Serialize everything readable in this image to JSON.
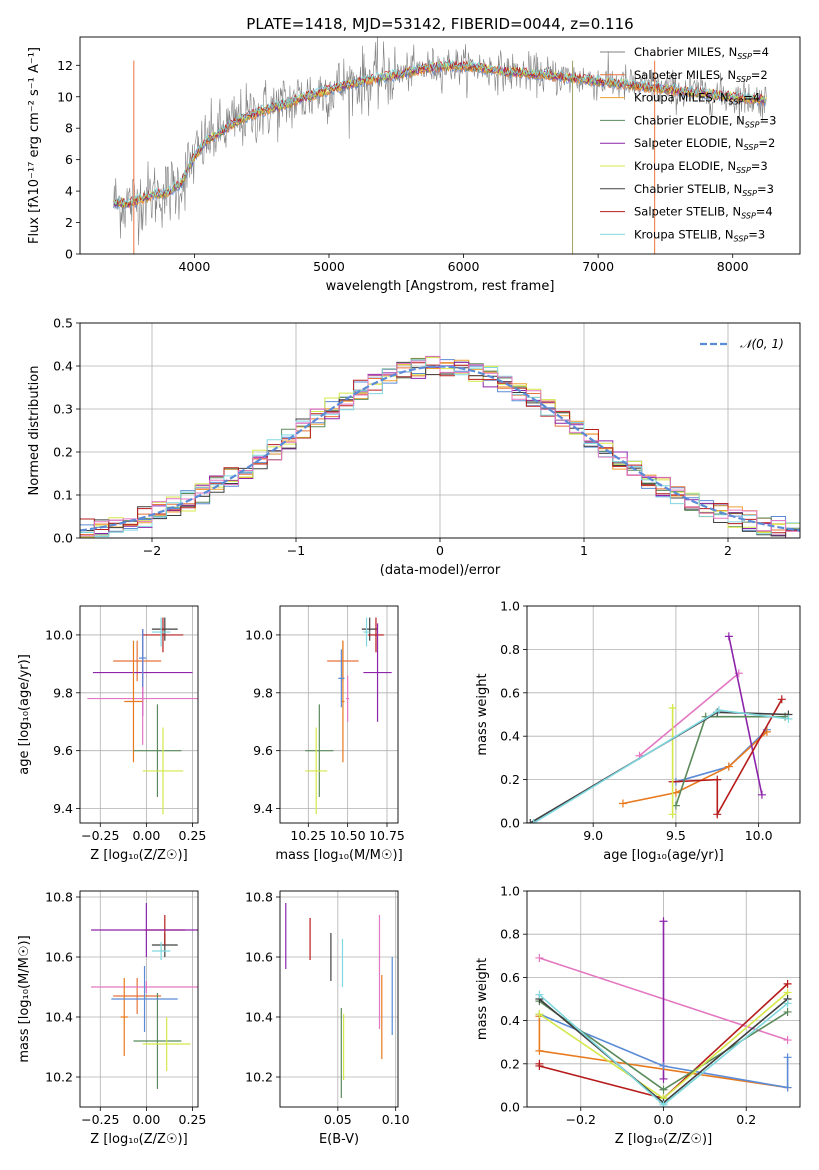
{
  "figure_title": "PLATE=1418, MJD=53142, FIBERID=0044, z=0.116",
  "colors": {
    "C_MILES": "#808080",
    "S_MILES": "#e8743b",
    "K_MILES": "#f0a030",
    "C_ELODIE": "#5a8a5a",
    "S_ELODIE": "#8e24aa",
    "K_ELODIE": "#d4e84a",
    "C_STELIB": "#404040",
    "S_STELIB": "#b71c1c",
    "K_STELIB": "#80d8e0",
    "pink": "#e377c2",
    "blue": "#5b8bd6",
    "orange": "#e87a1e",
    "gaussian": "#5b8bd6"
  },
  "chart_data": [
    {
      "id": "spectrum",
      "type": "line",
      "title": "PLATE=1418, MJD=53142, FIBERID=0044, z=0.116",
      "xlabel": "wavelength [Angstrom, rest frame]",
      "ylabel": "Flux [fλ10⁻¹⁷ erg cm⁻² s⁻¹ A⁻¹]",
      "xlim": [
        3150,
        8500
      ],
      "ylim": [
        0,
        13.8
      ],
      "xticks": [
        4000,
        5000,
        6000,
        7000,
        8000
      ],
      "yticks": [
        0,
        2,
        4,
        6,
        8,
        10,
        12
      ],
      "grid": false,
      "legend": "top-right",
      "continuum": {
        "x": [
          3400,
          3500,
          3600,
          3700,
          3800,
          3900,
          4000,
          4100,
          4200,
          4300,
          4500,
          4700,
          4900,
          5100,
          5300,
          5500,
          5700,
          5900,
          6100,
          6300,
          6500,
          6700,
          6900,
          7100,
          7300,
          7500,
          7700,
          7900,
          8100,
          8250
        ],
        "y": [
          3.3,
          3.2,
          3.5,
          3.8,
          3.9,
          4.5,
          6.2,
          7.3,
          7.8,
          8.4,
          9.1,
          9.6,
          10.2,
          10.7,
          11.1,
          11.4,
          11.8,
          12.0,
          11.9,
          11.6,
          11.5,
          11.3,
          11.1,
          10.9,
          10.7,
          10.5,
          10.3,
          10.1,
          9.9,
          9.8
        ]
      },
      "series": [
        {
          "name": "Chabrier MILES, N$_{SSP}$=4",
          "color": "#808080"
        },
        {
          "name": "Salpeter MILES, N$_{SSP}$=2",
          "color": "#e8743b"
        },
        {
          "name": "Kroupa MILES, N$_{SSP}$=4",
          "color": "#f0a030"
        },
        {
          "name": "Chabrier ELODIE, N$_{SSP}$=3",
          "color": "#5a8a5a"
        },
        {
          "name": "Salpeter ELODIE, N$_{SSP}$=2",
          "color": "#8e24aa"
        },
        {
          "name": "Kroupa ELODIE, N$_{SSP}$=3",
          "color": "#d4e84a"
        },
        {
          "name": "Chabrier STELIB, N$_{SSP}$=3",
          "color": "#404040"
        },
        {
          "name": "Salpeter STELIB, N$_{SSP}$=4",
          "color": "#b71c1c"
        },
        {
          "name": "Kroupa STELIB, N$_{SSP}$=3",
          "color": "#80d8e0"
        }
      ],
      "legend_labels": [
        "Chabrier MILES, N",
        "Salpeter MILES, N",
        "Kroupa MILES, N",
        "Chabrier ELODIE, N",
        "Salpeter ELODIE, N",
        "Kroupa ELODIE, N",
        "Chabrier STELIB, N",
        "Salpeter STELIB, N",
        "Kroupa STELIB, N"
      ],
      "legend_sub": "SSP",
      "legend_vals": [
        "=4",
        "=2",
        "=4",
        "=3",
        "=2",
        "=3",
        "=3",
        "=4",
        "=3"
      ]
    },
    {
      "id": "residual_hist",
      "type": "line",
      "xlabel": "(data-model)/error",
      "ylabel": "Normed distribution",
      "xlim": [
        -2.5,
        2.5
      ],
      "ylim": [
        0,
        0.5
      ],
      "xticks": [
        -2,
        -1,
        0,
        1,
        2
      ],
      "xtick_labels": [
        "−2",
        "−1",
        "0",
        "1",
        "2"
      ],
      "yticks": [
        0.0,
        0.1,
        0.2,
        0.3,
        0.4,
        0.5
      ],
      "ytick_labels": [
        "0.0",
        "0.1",
        "0.2",
        "0.3",
        "0.4",
        "0.5"
      ],
      "grid": true,
      "legend": "top-right",
      "gaussian_label": "𝒩(0, 1)",
      "bin_width": 0.1
    },
    {
      "id": "age_vs_Z",
      "type": "scatter",
      "xlabel": "Z [log₁₀(Z/Z☉)]",
      "ylabel": "age  [log₁₀(age/yr)]",
      "xlim": [
        -0.36,
        0.28
      ],
      "ylim": [
        9.35,
        10.1
      ],
      "xticks": [
        -0.25,
        0.0,
        0.25
      ],
      "xtick_labels": [
        "−0.25",
        "0.00",
        "0.25"
      ],
      "yticks": [
        9.4,
        9.6,
        9.8,
        10.0
      ],
      "ytick_labels": [
        "9.4",
        "9.6",
        "9.8",
        "10.0"
      ],
      "points": [
        {
          "x": 0.1,
          "y": 10.02,
          "xerr": 0.07,
          "yerr": 0.04,
          "c": "#404040"
        },
        {
          "x": 0.09,
          "y": 10.0,
          "xerr": 0.11,
          "yerr": 0.06,
          "c": "#b71c1c"
        },
        {
          "x": 0.08,
          "y": 10.01,
          "xerr": 0.05,
          "yerr": 0.05,
          "c": "#80d8e0"
        },
        {
          "x": -0.05,
          "y": 9.91,
          "xerr": 0.13,
          "yerr": 0.07,
          "c": "#e8743b"
        },
        {
          "x": -0.02,
          "y": 9.87,
          "xerr": 0.27,
          "yerr": 0.15,
          "c": "#8e24aa"
        },
        {
          "x": -0.02,
          "y": 9.78,
          "xerr": 0.3,
          "yerr": 0.16,
          "c": "#e377c2"
        },
        {
          "x": -0.07,
          "y": 9.77,
          "xerr": 0.05,
          "yerr": 0.21,
          "c": "#e87a1e"
        },
        {
          "x": 0.06,
          "y": 9.6,
          "xerr": 0.13,
          "yerr": 0.16,
          "c": "#5a8a5a"
        },
        {
          "x": 0.09,
          "y": 9.53,
          "xerr": 0.11,
          "yerr": 0.15,
          "c": "#d4e84a"
        },
        {
          "x": -0.02,
          "y": 9.92,
          "xerr": 0.02,
          "yerr": 0.1,
          "c": "#5b8bd6"
        }
      ]
    },
    {
      "id": "age_vs_mass",
      "type": "scatter",
      "xlabel": "mass [log₁₀(M/M☉)]",
      "xlim": [
        10.07,
        10.82
      ],
      "ylim": [
        9.35,
        10.1
      ],
      "xticks": [
        10.25,
        10.5,
        10.75
      ],
      "xtick_labels": [
        "10.25",
        "10.50",
        "10.75"
      ],
      "yticks": [
        9.4,
        9.6,
        9.8,
        10.0
      ],
      "ytick_labels": [
        "9.4",
        "9.6",
        "9.8",
        "10.0"
      ],
      "points": [
        {
          "x": 10.64,
          "y": 10.02,
          "xerr": 0.05,
          "yerr": 0.04,
          "c": "#404040"
        },
        {
          "x": 10.68,
          "y": 10.0,
          "xerr": 0.05,
          "yerr": 0.06,
          "c": "#b71c1c"
        },
        {
          "x": 10.62,
          "y": 10.01,
          "xerr": 0.02,
          "yerr": 0.05,
          "c": "#80d8e0"
        },
        {
          "x": 10.47,
          "y": 9.91,
          "xerr": 0.1,
          "yerr": 0.07,
          "c": "#e8743b"
        },
        {
          "x": 10.69,
          "y": 9.87,
          "xerr": 0.09,
          "yerr": 0.17,
          "c": "#8e24aa"
        },
        {
          "x": 10.5,
          "y": 9.78,
          "xerr": 0.01,
          "yerr": 0.08,
          "c": "#e377c2"
        },
        {
          "x": 10.47,
          "y": 9.77,
          "xerr": 0.01,
          "yerr": 0.21,
          "c": "#e87a1e"
        },
        {
          "x": 10.32,
          "y": 9.6,
          "xerr": 0.09,
          "yerr": 0.16,
          "c": "#5a8a5a"
        },
        {
          "x": 10.3,
          "y": 9.53,
          "xerr": 0.07,
          "yerr": 0.15,
          "c": "#d4e84a"
        },
        {
          "x": 10.46,
          "y": 9.85,
          "xerr": 0.02,
          "yerr": 0.1,
          "c": "#5b8bd6"
        }
      ]
    },
    {
      "id": "weight_vs_age",
      "type": "line",
      "xlabel": "age  [log₁₀(age/yr)]",
      "ylabel": "mass weight",
      "xlim": [
        8.6,
        10.25
      ],
      "ylim": [
        0,
        1
      ],
      "xticks": [
        9.0,
        9.5,
        10.0
      ],
      "xtick_labels": [
        "9.0",
        "9.5",
        "10.0"
      ],
      "yticks": [
        0,
        0.2,
        0.4,
        0.6,
        0.8,
        1.0
      ],
      "ytick_labels": [
        "0.0",
        "0.2",
        "0.4",
        "0.6",
        "0.8",
        "1.0"
      ],
      "series": [
        {
          "c": "#5b8bd6",
          "x": [
            9.5,
            9.82,
            10.05
          ],
          "y": [
            0.19,
            0.26,
            0.43
          ]
        },
        {
          "c": "#e87a1e",
          "x": [
            9.18,
            9.5,
            9.82,
            10.05
          ],
          "y": [
            0.09,
            0.14,
            0.26,
            0.42
          ]
        },
        {
          "c": "#e377c2",
          "x": [
            9.28,
            9.88
          ],
          "y": [
            0.31,
            0.69
          ]
        },
        {
          "c": "#8e24aa",
          "x": [
            9.82,
            10.02
          ],
          "y": [
            0.86,
            0.13
          ]
        },
        {
          "c": "#b71c1c",
          "x": [
            9.48,
            9.75,
            9.75,
            10.14
          ],
          "y": [
            0.19,
            0.2,
            0.04,
            0.57
          ]
        },
        {
          "c": "#5a8a5a",
          "x": [
            9.5,
            9.68,
            10.16
          ],
          "y": [
            0.08,
            0.49,
            0.49
          ]
        },
        {
          "c": "#d4e84a",
          "x": [
            9.48,
            9.48
          ],
          "y": [
            0.53,
            0.04
          ]
        },
        {
          "c": "#404040",
          "x": [
            8.62,
            9.75,
            10.18
          ],
          "y": [
            0.0,
            0.51,
            0.5
          ]
        },
        {
          "c": "#80d8e0",
          "x": [
            8.64,
            9.76,
            10.18
          ],
          "y": [
            0.0,
            0.52,
            0.48
          ]
        }
      ]
    },
    {
      "id": "mass_vs_Z",
      "type": "scatter",
      "xlabel": "Z [log₁₀(Z/Z☉)]",
      "ylabel": "mass [log₁₀(M/M☉)]",
      "xlim": [
        -0.36,
        0.28
      ],
      "ylim": [
        10.1,
        10.82
      ],
      "xticks": [
        -0.25,
        0.0,
        0.25
      ],
      "xtick_labels": [
        "−0.25",
        "0.00",
        "0.25"
      ],
      "yticks": [
        10.2,
        10.4,
        10.6,
        10.8
      ],
      "ytick_labels": [
        "10.2",
        "10.4",
        "10.6",
        "10.8"
      ],
      "points": [
        {
          "x": 0.1,
          "y": 10.64,
          "xerr": 0.07,
          "yerr": 0.04,
          "c": "#404040"
        },
        {
          "x": 0.1,
          "y": 10.69,
          "xerr": 0.11,
          "yerr": 0.05,
          "c": "#b71c1c"
        },
        {
          "x": 0.08,
          "y": 10.62,
          "xerr": 0.05,
          "yerr": 0.03,
          "c": "#80d8e0"
        },
        {
          "x": -0.05,
          "y": 10.47,
          "xerr": 0.13,
          "yerr": 0.06,
          "c": "#e8743b"
        },
        {
          "x": 0.0,
          "y": 10.69,
          "xerr": 0.3,
          "yerr": 0.09,
          "c": "#8e24aa"
        },
        {
          "x": 0.0,
          "y": 10.5,
          "xerr": 0.3,
          "yerr": 0.02,
          "c": "#e377c2"
        },
        {
          "x": -0.12,
          "y": 10.4,
          "xerr": 0.02,
          "yerr": 0.13,
          "c": "#e87a1e"
        },
        {
          "x": 0.06,
          "y": 10.32,
          "xerr": 0.13,
          "yerr": 0.16,
          "c": "#5a8a5a"
        },
        {
          "x": 0.11,
          "y": 10.31,
          "xerr": 0.13,
          "yerr": 0.09,
          "c": "#d4e84a"
        },
        {
          "x": -0.01,
          "y": 10.46,
          "xerr": 0.18,
          "yerr": 0.11,
          "c": "#5b8bd6"
        }
      ]
    },
    {
      "id": "mass_vs_ebv",
      "type": "scatter",
      "xlabel": "E(B-V)",
      "xlim": [
        0.0,
        0.102
      ],
      "ylim": [
        10.1,
        10.82
      ],
      "xticks": [
        0.05,
        0.1
      ],
      "xtick_labels": [
        "0.05",
        "0.10"
      ],
      "yticks": [
        10.2,
        10.4,
        10.6,
        10.8
      ],
      "ytick_labels": [
        "10.2",
        "10.4",
        "10.6",
        "10.8"
      ],
      "points": [
        {
          "x": 0.005,
          "y": 10.67,
          "yerr": 0.11,
          "c": "#8e24aa"
        },
        {
          "x": 0.026,
          "y": 10.66,
          "yerr": 0.07,
          "c": "#b71c1c"
        },
        {
          "x": 0.044,
          "y": 10.6,
          "yerr": 0.08,
          "c": "#404040"
        },
        {
          "x": 0.054,
          "y": 10.58,
          "yerr": 0.08,
          "c": "#80d8e0"
        },
        {
          "x": 0.053,
          "y": 10.28,
          "yerr": 0.15,
          "c": "#5a8a5a"
        },
        {
          "x": 0.055,
          "y": 10.3,
          "yerr": 0.11,
          "c": "#d4e84a"
        },
        {
          "x": 0.086,
          "y": 10.55,
          "yerr": 0.19,
          "c": "#e377c2"
        },
        {
          "x": 0.088,
          "y": 10.4,
          "yerr": 0.14,
          "c": "#e87a1e"
        },
        {
          "x": 0.097,
          "y": 10.47,
          "yerr": 0.13,
          "c": "#5b8bd6"
        }
      ]
    },
    {
      "id": "weight_vs_Z",
      "type": "line",
      "xlabel": "Z [log₁₀(Z/Z☉)]",
      "ylabel": "mass weight",
      "xlim": [
        -0.33,
        0.33
      ],
      "ylim": [
        0,
        1
      ],
      "xticks": [
        -0.2,
        0.0,
        0.2
      ],
      "xtick_labels": [
        "−0.2",
        "0.0",
        "0.2"
      ],
      "yticks": [
        0,
        0.2,
        0.4,
        0.6,
        0.8,
        1.0
      ],
      "ytick_labels": [
        "0.0",
        "0.2",
        "0.4",
        "0.6",
        "0.8",
        "1.0"
      ],
      "series": [
        {
          "c": "#e377c2",
          "x": [
            -0.3,
            0.3
          ],
          "y": [
            0.69,
            0.31
          ]
        },
        {
          "c": "#8e24aa",
          "x": [
            0.0,
            0.0
          ],
          "y": [
            0.86,
            0.13
          ]
        },
        {
          "c": "#e87a1e",
          "x": [
            -0.3,
            -0.3,
            0.3
          ],
          "y": [
            0.42,
            0.26,
            0.09
          ]
        },
        {
          "c": "#5b8bd6",
          "x": [
            -0.3,
            0.0,
            0.3,
            0.3
          ],
          "y": [
            0.43,
            0.19,
            0.09,
            0.23
          ]
        },
        {
          "c": "#b71c1c",
          "x": [
            -0.3,
            -0.3,
            0.0,
            0.3
          ],
          "y": [
            0.2,
            0.19,
            0.04,
            0.57
          ]
        },
        {
          "c": "#5a8a5a",
          "x": [
            -0.3,
            0.0,
            0.3
          ],
          "y": [
            0.49,
            0.08,
            0.44
          ]
        },
        {
          "c": "#d4e84a",
          "x": [
            -0.3,
            0.0,
            0.3
          ],
          "y": [
            0.43,
            0.04,
            0.53
          ]
        },
        {
          "c": "#404040",
          "x": [
            -0.3,
            0.0,
            0.3
          ],
          "y": [
            0.5,
            0.02,
            0.5
          ]
        },
        {
          "c": "#80d8e0",
          "x": [
            -0.3,
            0.0,
            0.3
          ],
          "y": [
            0.52,
            0.01,
            0.48
          ]
        }
      ]
    }
  ]
}
